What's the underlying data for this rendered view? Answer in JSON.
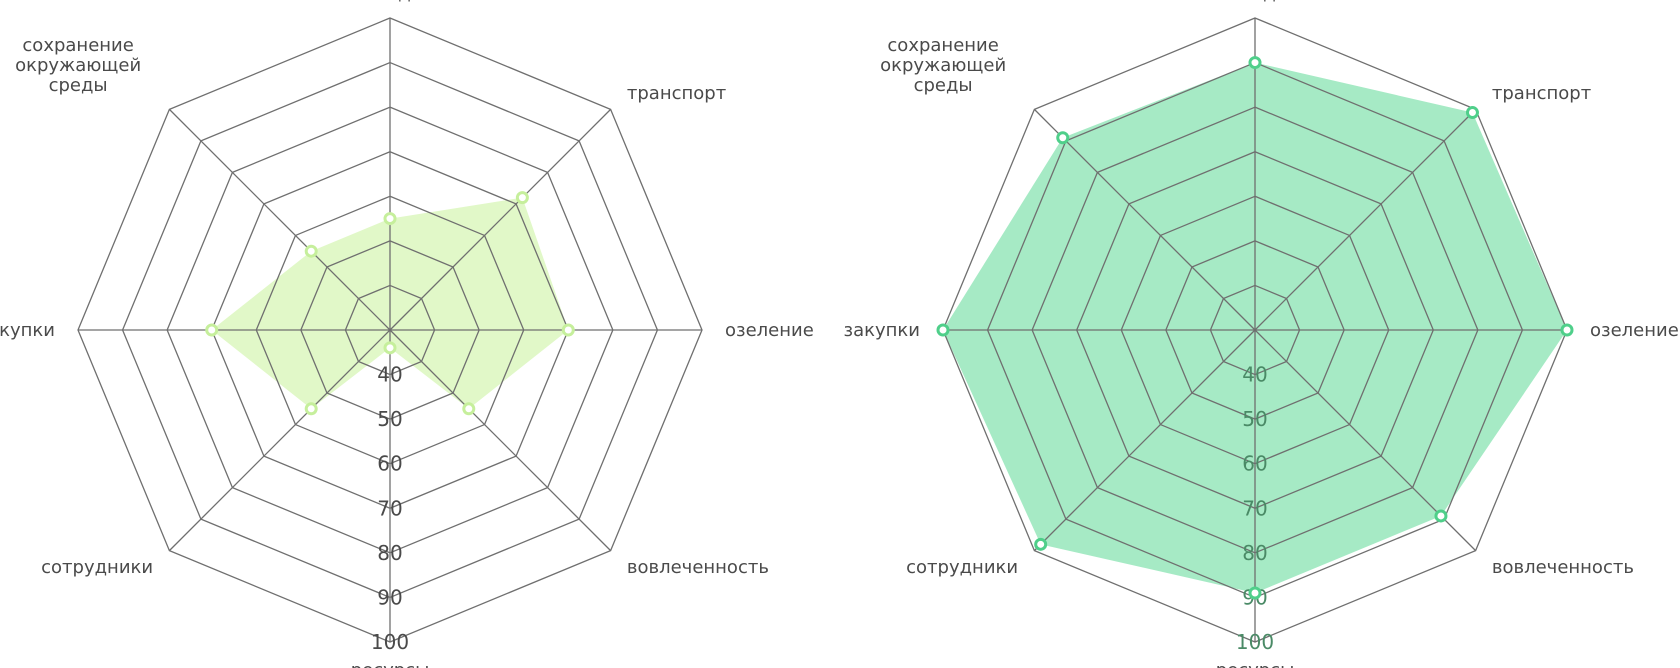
{
  "chart_data": [
    {
      "type": "radar",
      "axes": [
        "отходы",
        "транспорт",
        "озеление",
        "вовлеченность",
        "ресурсы",
        "сотрудники",
        "закупки",
        "сохранение окружающей среды"
      ],
      "ticks": [
        "40",
        "50",
        "60",
        "70",
        "80",
        "90",
        "100"
      ],
      "rlim": [
        30,
        100
      ],
      "series": [
        {
          "values": [
            55,
            72,
            70,
            55,
            34,
            55,
            70,
            55
          ]
        }
      ],
      "colors": {
        "fill": "#e1f8c8",
        "stroke": "#c6ef9c",
        "tick": "#4a4a4a"
      }
    },
    {
      "type": "radar",
      "axes": [
        "отходы",
        "транспорт",
        "озеление",
        "вовлеченность",
        "ресурсы",
        "сотрудники",
        "закупки",
        "сохранение окружающей среды"
      ],
      "ticks": [
        "40",
        "50",
        "60",
        "70",
        "80",
        "90",
        "100"
      ],
      "rlim": [
        30,
        100
      ],
      "series": [
        {
          "values": [
            90,
            99,
            100,
            89,
            89,
            98,
            100,
            91
          ]
        }
      ],
      "colors": {
        "fill": "#a6eac5",
        "stroke": "#4fcf8a",
        "tick": "#4a8a66"
      }
    }
  ]
}
